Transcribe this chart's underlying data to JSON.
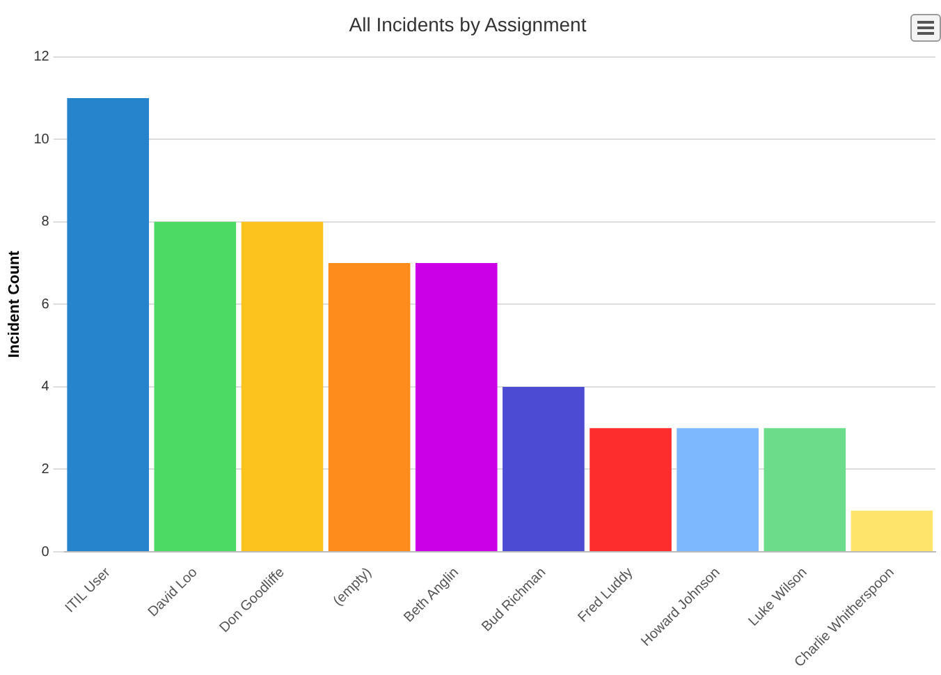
{
  "chart_data": {
    "type": "bar",
    "title": "All Incidents by Assignment",
    "ylabel": "Incident Count",
    "categories": [
      "ITIL User",
      "David Loo",
      "Don Goodliffe",
      "(empty)",
      "Beth Anglin",
      "Bud Richman",
      "Fred Luddy",
      "Howard Johnson",
      "Luke Wilson",
      "Charlie Whitherspoon"
    ],
    "values": [
      11,
      8,
      8,
      7,
      7,
      4,
      3,
      3,
      3,
      1
    ],
    "colors": [
      "#2684cc",
      "#4cd964",
      "#fcc31e",
      "#fd8c1c",
      "#cc00e6",
      "#4b4bd3",
      "#fd2d2d",
      "#7db8ff",
      "#6cdc8a",
      "#fee46a"
    ],
    "ylim": [
      0,
      12
    ],
    "yticks": [
      0,
      2,
      4,
      6,
      8,
      10,
      12
    ],
    "grid": "y",
    "legend": false
  }
}
